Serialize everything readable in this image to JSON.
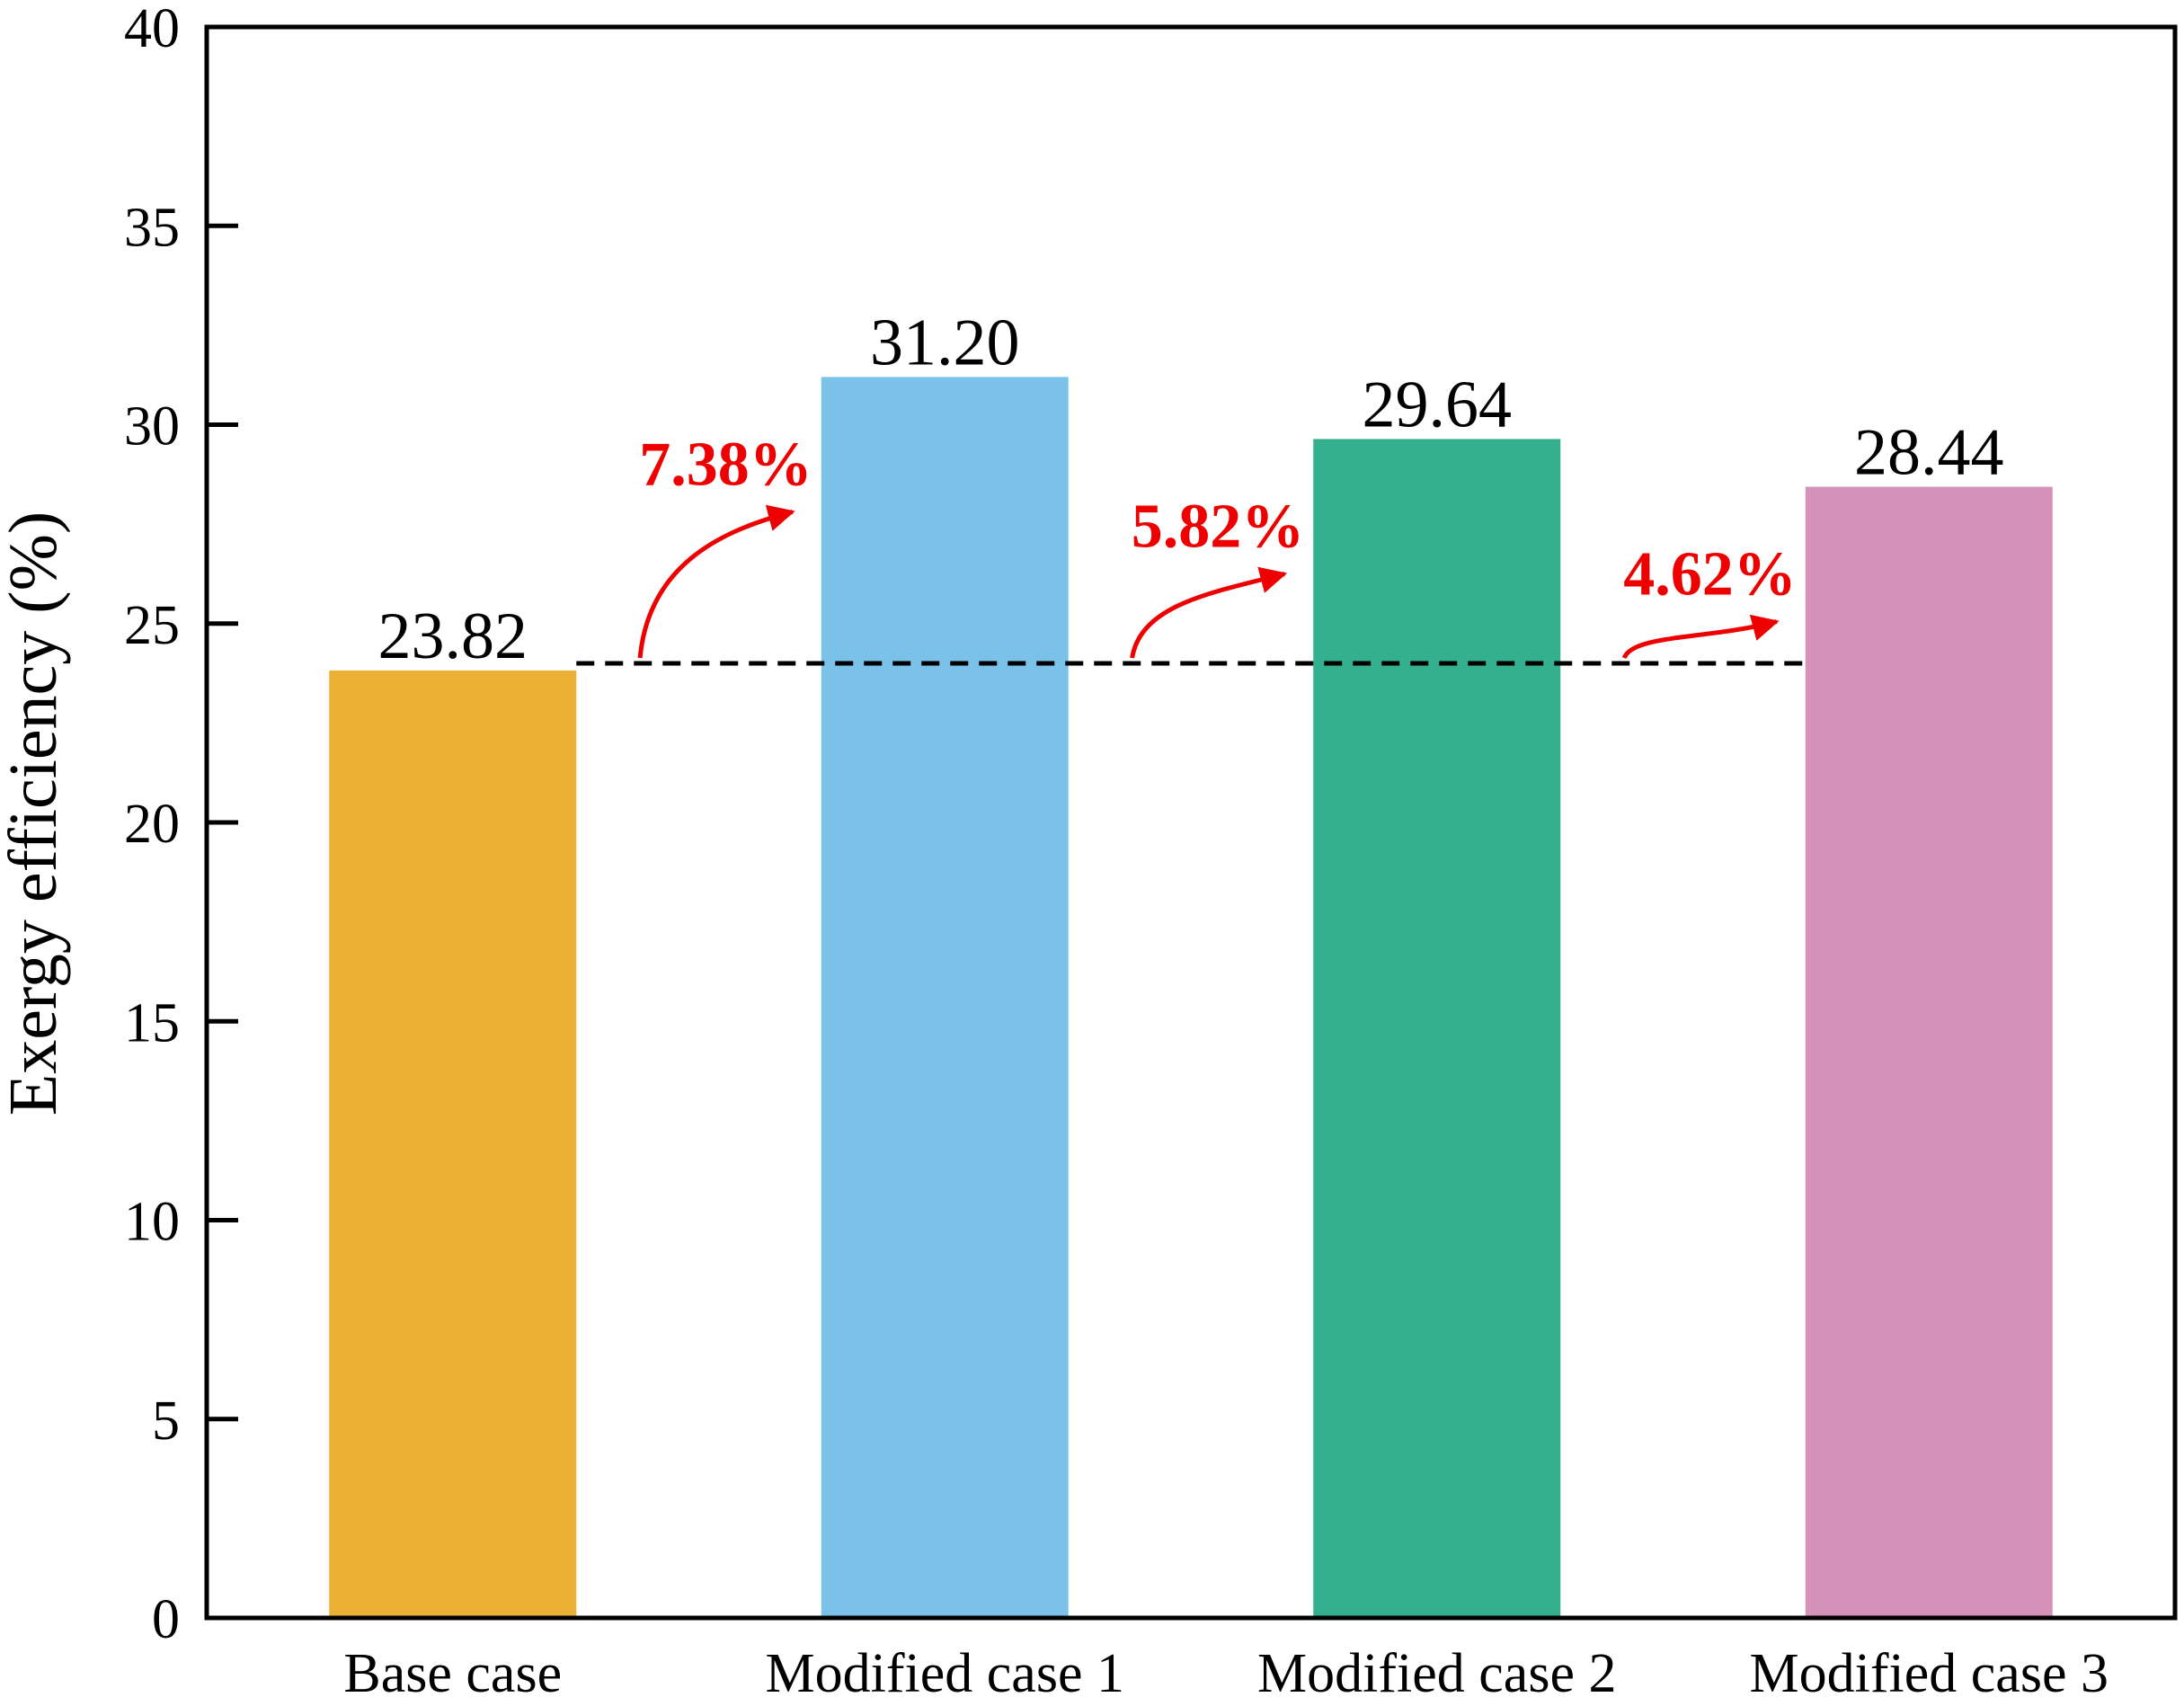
{
  "chart_data": {
    "type": "bar",
    "categories": [
      "Base case",
      "Modified case 1",
      "Modified case 2",
      "Modified case 3"
    ],
    "values": [
      23.82,
      31.2,
      29.64,
      28.44
    ],
    "value_labels": [
      "23.82",
      "31.20",
      "29.64",
      "28.44"
    ],
    "colors": [
      "#EBB035",
      "#7BC2EB",
      "#35B08F",
      "#D492B8"
    ],
    "ylabel": "Exergy efficiency (%)",
    "xlabel": "",
    "ylim": [
      0,
      40
    ],
    "yticks": [
      0,
      5,
      10,
      15,
      20,
      25,
      30,
      35,
      40
    ],
    "grid": false,
    "reference_line": {
      "value": 24,
      "style": "dashed",
      "color": "#000000"
    },
    "annotations": [
      {
        "text": "7.38%",
        "color": "#EE0000",
        "between": [
          0,
          1
        ]
      },
      {
        "text": "5.82%",
        "color": "#EE0000",
        "between": [
          1,
          2
        ]
      },
      {
        "text": "4.62%",
        "color": "#EE0000",
        "between": [
          2,
          3
        ]
      }
    ]
  }
}
